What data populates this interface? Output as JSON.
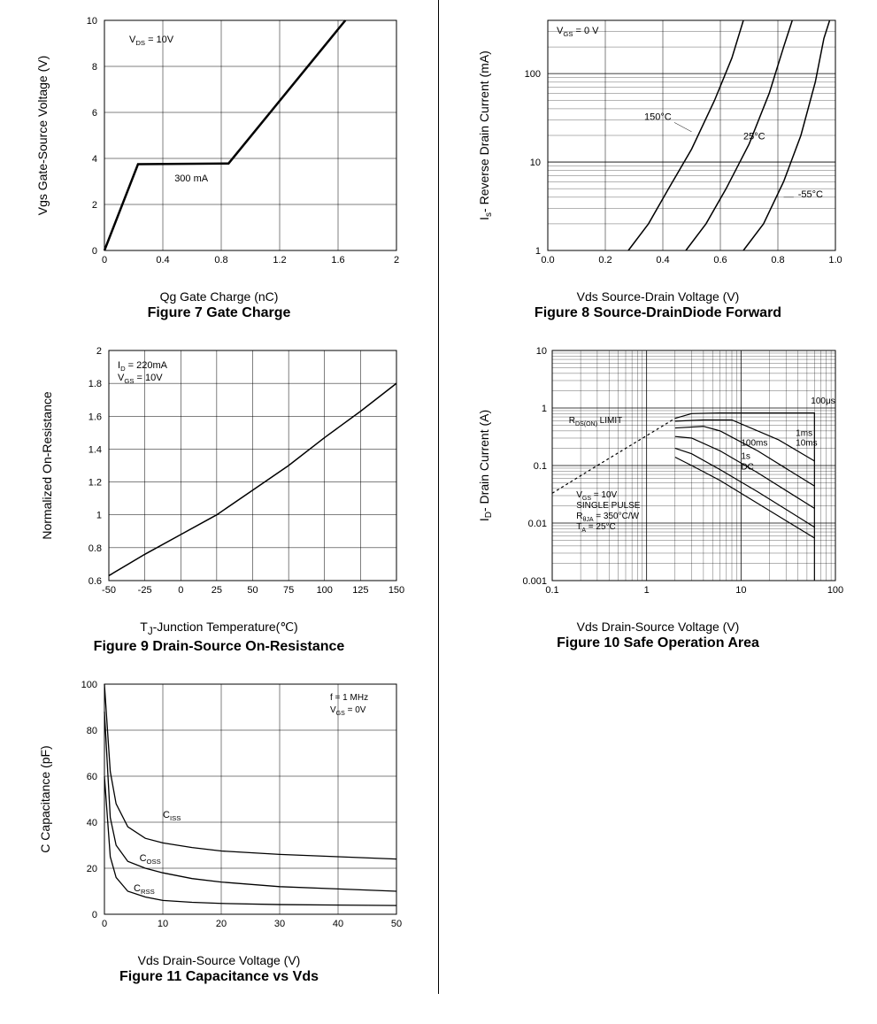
{
  "colors": {
    "axis": "#000000",
    "grid": "#000000",
    "line": "#000000",
    "bg": "#ffffff"
  },
  "fig7": {
    "type": "line",
    "title": "Figure 7 Gate Charge",
    "xlabel": "Qg Gate Charge (nC)",
    "ylabel": "Vgs Gate-Source Voltage (V)",
    "xlim": [
      0,
      2
    ],
    "ylim": [
      0,
      10
    ],
    "xticks": [
      0,
      0.4,
      0.8,
      1.2,
      1.6,
      2
    ],
    "yticks": [
      0,
      2,
      4,
      6,
      8,
      10
    ],
    "line_width": 2.5,
    "annot_vds": "V",
    "annot_vds_sub": "DS",
    "annot_vds_val": " = 10V",
    "annot_300": "300 mA",
    "series": [
      {
        "points": [
          [
            0,
            0
          ],
          [
            0.23,
            3.75
          ],
          [
            0.85,
            3.78
          ],
          [
            1.65,
            10
          ]
        ]
      }
    ]
  },
  "fig8": {
    "type": "line",
    "title": "Figure 8 Source-DrainDiode Forward",
    "xlabel": "Vds Source-Drain Voltage (V)",
    "ylabel": "I",
    "ylabel_sub": "s",
    "ylabel_rest": "- Reverse Drain Current (mA)",
    "xlim": [
      0,
      1.0
    ],
    "ylim_log": [
      1,
      400
    ],
    "xticks": [
      0.0,
      0.2,
      0.4,
      0.6,
      0.8,
      1.0
    ],
    "ytick_labels": [
      "1",
      "10",
      "100"
    ],
    "annot_vgs": "V",
    "annot_vgs_sub": "GS",
    "annot_vgs_val": " = 0 V",
    "curve_labels": [
      "150°C",
      "25°C",
      "-55°C"
    ],
    "line_width": 1.5,
    "series": [
      {
        "name": "150C",
        "points": [
          [
            0.28,
            1
          ],
          [
            0.35,
            2
          ],
          [
            0.42,
            5
          ],
          [
            0.5,
            14
          ],
          [
            0.58,
            50
          ],
          [
            0.64,
            150
          ],
          [
            0.68,
            400
          ]
        ]
      },
      {
        "name": "25C",
        "points": [
          [
            0.48,
            1
          ],
          [
            0.55,
            2
          ],
          [
            0.62,
            5
          ],
          [
            0.7,
            16
          ],
          [
            0.77,
            60
          ],
          [
            0.82,
            200
          ],
          [
            0.85,
            400
          ]
        ]
      },
      {
        "name": "-55C",
        "points": [
          [
            0.68,
            1
          ],
          [
            0.75,
            2
          ],
          [
            0.82,
            6
          ],
          [
            0.88,
            20
          ],
          [
            0.93,
            80
          ],
          [
            0.96,
            250
          ],
          [
            0.98,
            400
          ]
        ]
      }
    ]
  },
  "fig9": {
    "type": "line",
    "title": "Figure 9 Drain-Source On-Resistance",
    "xlabel": "T",
    "xlabel_sub": "J",
    "xlabel_rest": "-Junction Temperature(℃)",
    "ylabel": "Normalized On-Resistance",
    "xlim": [
      -50,
      150
    ],
    "ylim": [
      0.6,
      2
    ],
    "xticks": [
      -50,
      -25,
      0,
      25,
      50,
      75,
      100,
      125,
      150
    ],
    "yticks": [
      0.6,
      0.8,
      1,
      1.2,
      1.4,
      1.6,
      1.8,
      2
    ],
    "annot_id": "I",
    "annot_id_sub": "D",
    "annot_id_val": " = 220mA",
    "annot_vgs": "V",
    "annot_vgs_sub": "GS",
    "annot_vgs_val": " = 10V",
    "line_width": 1.5,
    "series": [
      {
        "points": [
          [
            -50,
            0.63
          ],
          [
            -25,
            0.76
          ],
          [
            0,
            0.88
          ],
          [
            25,
            1.0
          ],
          [
            50,
            1.15
          ],
          [
            75,
            1.3
          ],
          [
            100,
            1.47
          ],
          [
            125,
            1.63
          ],
          [
            150,
            1.8
          ]
        ]
      }
    ]
  },
  "fig10": {
    "type": "loglog",
    "title": "Figure 10 Safe Operation Area",
    "xlabel": "Vds Drain-Source Voltage (V)",
    "ylabel": "I",
    "ylabel_sub": "D",
    "ylabel_rest": "- Drain Current (A)",
    "xlim_log": [
      0.1,
      100
    ],
    "ylim_log": [
      0.001,
      10
    ],
    "xtick_labels": [
      "0.1",
      "1",
      "10",
      "100"
    ],
    "ytick_labels": [
      "0.001",
      "0.01",
      "0.1",
      "1",
      "10"
    ],
    "curve_labels": [
      "100μs",
      "1ms",
      "10ms",
      "100ms",
      "1s",
      "DC"
    ],
    "annot_rdson": "R",
    "annot_rdson_sub": "DS(ON)",
    "annot_rdson_rest": " LIMIT",
    "annot_box": [
      "V",
      "GS",
      " = 10V",
      "SINGLE PULSE",
      "R",
      "θJA",
      " = 350°C/W",
      "T",
      "A",
      " = 25°C"
    ],
    "line_width": 1.2,
    "series": [
      {
        "name": "rds_limit",
        "points": [
          [
            0.1,
            0.033
          ],
          [
            0.3,
            0.1
          ],
          [
            1,
            0.33
          ],
          [
            2,
            0.66
          ]
        ],
        "dash": "3,3"
      },
      {
        "name": "100us",
        "points": [
          [
            2,
            0.66
          ],
          [
            3,
            0.8
          ],
          [
            6,
            0.82
          ],
          [
            20,
            0.82
          ],
          [
            60,
            0.82
          ],
          [
            60,
            0.001
          ]
        ]
      },
      {
        "name": "1ms",
        "points": [
          [
            2,
            0.59
          ],
          [
            4,
            0.62
          ],
          [
            8,
            0.62
          ],
          [
            25,
            0.28
          ],
          [
            60,
            0.12
          ]
        ]
      },
      {
        "name": "10ms",
        "points": [
          [
            2,
            0.45
          ],
          [
            4,
            0.48
          ],
          [
            6,
            0.4
          ],
          [
            15,
            0.18
          ],
          [
            60,
            0.044
          ]
        ]
      },
      {
        "name": "100ms",
        "points": [
          [
            2,
            0.32
          ],
          [
            3,
            0.3
          ],
          [
            6,
            0.18
          ],
          [
            15,
            0.075
          ],
          [
            60,
            0.018
          ]
        ]
      },
      {
        "name": "1s",
        "points": [
          [
            2,
            0.2
          ],
          [
            3,
            0.16
          ],
          [
            6,
            0.085
          ],
          [
            15,
            0.035
          ],
          [
            60,
            0.0085
          ]
        ]
      },
      {
        "name": "DC",
        "points": [
          [
            2,
            0.14
          ],
          [
            3,
            0.1
          ],
          [
            6,
            0.055
          ],
          [
            15,
            0.022
          ],
          [
            60,
            0.0055
          ]
        ]
      }
    ]
  },
  "fig11": {
    "type": "line",
    "title": "Figure 11 Capacitance vs Vds",
    "xlabel": "Vds Drain-Source Voltage (V)",
    "ylabel": "C Capacitance (pF)",
    "xlim": [
      0,
      50
    ],
    "ylim": [
      0,
      100
    ],
    "xticks": [
      0,
      10,
      20,
      30,
      40,
      50
    ],
    "yticks": [
      0,
      20,
      40,
      60,
      80,
      100
    ],
    "annot_f": "f = 1 MHz",
    "annot_vgs": "V",
    "annot_vgs_sub": "GS",
    "annot_vgs_val": " = 0V",
    "curve_labels_full": [
      [
        "C",
        "ISS"
      ],
      [
        "C",
        "OSS"
      ],
      [
        "C",
        "RSS"
      ]
    ],
    "line_width": 1.3,
    "series": [
      {
        "name": "Ciss",
        "points": [
          [
            0,
            100
          ],
          [
            1,
            62
          ],
          [
            2,
            48
          ],
          [
            4,
            38
          ],
          [
            7,
            33
          ],
          [
            10,
            31
          ],
          [
            15,
            29
          ],
          [
            20,
            27.5
          ],
          [
            30,
            26
          ],
          [
            40,
            25
          ],
          [
            50,
            24
          ]
        ]
      },
      {
        "name": "Coss",
        "points": [
          [
            0,
            88
          ],
          [
            1,
            42
          ],
          [
            2,
            30
          ],
          [
            4,
            23
          ],
          [
            7,
            20
          ],
          [
            10,
            18
          ],
          [
            15,
            15.5
          ],
          [
            20,
            14
          ],
          [
            30,
            12
          ],
          [
            40,
            11
          ],
          [
            50,
            10
          ]
        ]
      },
      {
        "name": "Crss",
        "points": [
          [
            0,
            60
          ],
          [
            1,
            25
          ],
          [
            2,
            16
          ],
          [
            4,
            10
          ],
          [
            7,
            7.5
          ],
          [
            10,
            6
          ],
          [
            15,
            5.2
          ],
          [
            20,
            4.7
          ],
          [
            30,
            4.2
          ],
          [
            40,
            4
          ],
          [
            50,
            3.8
          ]
        ]
      }
    ]
  }
}
